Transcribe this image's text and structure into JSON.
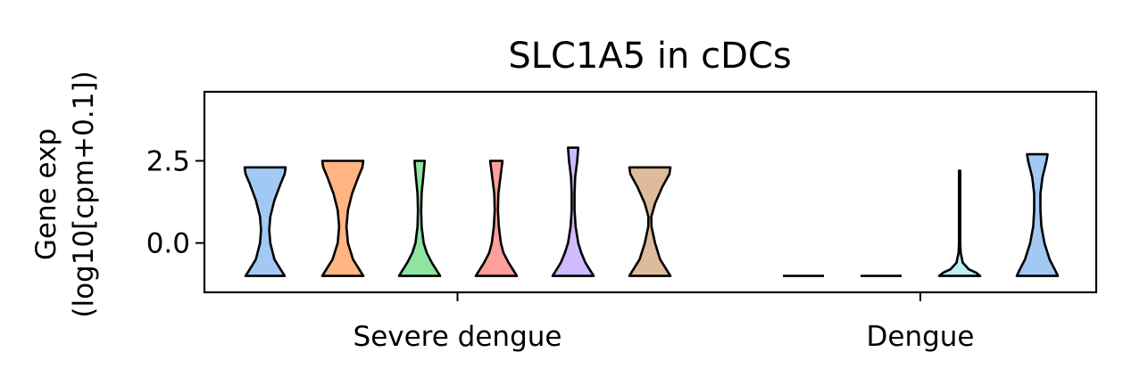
{
  "chart_data": {
    "type": "violin",
    "title": "SLC1A5 in cDCs",
    "ylabel_lines": [
      "Gene exp",
      "(log10[cpm+0.1])"
    ],
    "xlabel": "",
    "ylim": [
      -1.5,
      4.6
    ],
    "yticks": [
      0.0,
      2.5
    ],
    "ytick_labels": [
      "0.0",
      "2.5"
    ],
    "groups": [
      "Severe dengue",
      "Dengue"
    ],
    "grid": false,
    "violins": [
      {
        "group": "Severe dengue",
        "color": "#a1c9f4",
        "min": -1.0,
        "max": 2.3,
        "profile": [
          [
            -1.0,
            0.95
          ],
          [
            -0.8,
            0.75
          ],
          [
            -0.5,
            0.45
          ],
          [
            0.0,
            0.25
          ],
          [
            0.4,
            0.2
          ],
          [
            0.8,
            0.25
          ],
          [
            1.3,
            0.45
          ],
          [
            1.8,
            0.75
          ],
          [
            2.1,
            0.95
          ],
          [
            2.3,
            1.0
          ]
        ]
      },
      {
        "group": "Severe dengue",
        "color": "#ffb482",
        "min": -1.0,
        "max": 2.5,
        "profile": [
          [
            -1.0,
            1.0
          ],
          [
            -0.8,
            0.8
          ],
          [
            -0.5,
            0.5
          ],
          [
            0.0,
            0.25
          ],
          [
            0.5,
            0.18
          ],
          [
            1.0,
            0.25
          ],
          [
            1.5,
            0.45
          ],
          [
            2.0,
            0.75
          ],
          [
            2.3,
            0.95
          ],
          [
            2.5,
            1.0
          ]
        ]
      },
      {
        "group": "Severe dengue",
        "color": "#8de5a1",
        "min": -1.0,
        "max": 2.5,
        "profile": [
          [
            -1.0,
            1.0
          ],
          [
            -0.85,
            0.85
          ],
          [
            -0.6,
            0.6
          ],
          [
            -0.3,
            0.35
          ],
          [
            0.0,
            0.2
          ],
          [
            0.5,
            0.1
          ],
          [
            1.0,
            0.08
          ],
          [
            1.5,
            0.1
          ],
          [
            2.0,
            0.18
          ],
          [
            2.5,
            0.25
          ]
        ]
      },
      {
        "group": "Severe dengue",
        "color": "#ff9f9b",
        "min": -1.0,
        "max": 2.5,
        "profile": [
          [
            -1.0,
            1.0
          ],
          [
            -0.85,
            0.85
          ],
          [
            -0.6,
            0.6
          ],
          [
            -0.3,
            0.35
          ],
          [
            0.0,
            0.22
          ],
          [
            0.5,
            0.12
          ],
          [
            1.0,
            0.08
          ],
          [
            1.5,
            0.1
          ],
          [
            2.0,
            0.2
          ],
          [
            2.5,
            0.3
          ]
        ]
      },
      {
        "group": "Severe dengue",
        "color": "#d0bbff",
        "min": -1.0,
        "max": 2.9,
        "profile": [
          [
            -1.0,
            1.0
          ],
          [
            -0.85,
            0.85
          ],
          [
            -0.6,
            0.6
          ],
          [
            -0.3,
            0.4
          ],
          [
            0.0,
            0.25
          ],
          [
            0.5,
            0.12
          ],
          [
            1.0,
            0.07
          ],
          [
            1.5,
            0.07
          ],
          [
            2.0,
            0.1
          ],
          [
            2.5,
            0.2
          ],
          [
            2.9,
            0.25
          ]
        ]
      },
      {
        "group": "Severe dengue",
        "color": "#debb9b",
        "min": -1.0,
        "max": 2.3,
        "profile": [
          [
            -1.0,
            1.0
          ],
          [
            -0.8,
            0.8
          ],
          [
            -0.5,
            0.5
          ],
          [
            0.0,
            0.25
          ],
          [
            0.5,
            0.08
          ],
          [
            0.8,
            0.07
          ],
          [
            1.2,
            0.25
          ],
          [
            1.7,
            0.6
          ],
          [
            2.1,
            0.95
          ],
          [
            2.3,
            1.0
          ]
        ]
      },
      {
        "group": "Dengue",
        "color": "#a1c9f4",
        "min": -1.0,
        "max": -1.0,
        "profile": [
          [
            -1.0,
            1.0
          ]
        ]
      },
      {
        "group": "Dengue",
        "color": "#ffb482",
        "min": -1.0,
        "max": -1.0,
        "profile": [
          [
            -1.0,
            1.0
          ]
        ]
      },
      {
        "group": "Dengue",
        "color": "#b9f2f0",
        "min": -1.0,
        "max": 2.2,
        "profile": [
          [
            -1.0,
            1.0
          ],
          [
            -0.9,
            0.8
          ],
          [
            -0.8,
            0.45
          ],
          [
            -0.6,
            0.15
          ],
          [
            -0.3,
            0.05
          ],
          [
            0.0,
            0.03
          ],
          [
            1.0,
            0.03
          ],
          [
            2.2,
            0.03
          ]
        ]
      },
      {
        "group": "Dengue",
        "color": "#a1c9f4",
        "min": -1.0,
        "max": 2.7,
        "profile": [
          [
            -1.0,
            1.0
          ],
          [
            -0.8,
            0.85
          ],
          [
            -0.5,
            0.6
          ],
          [
            0.0,
            0.35
          ],
          [
            0.5,
            0.2
          ],
          [
            1.0,
            0.15
          ],
          [
            1.5,
            0.15
          ],
          [
            2.0,
            0.25
          ],
          [
            2.5,
            0.45
          ],
          [
            2.7,
            0.5
          ]
        ]
      }
    ]
  }
}
